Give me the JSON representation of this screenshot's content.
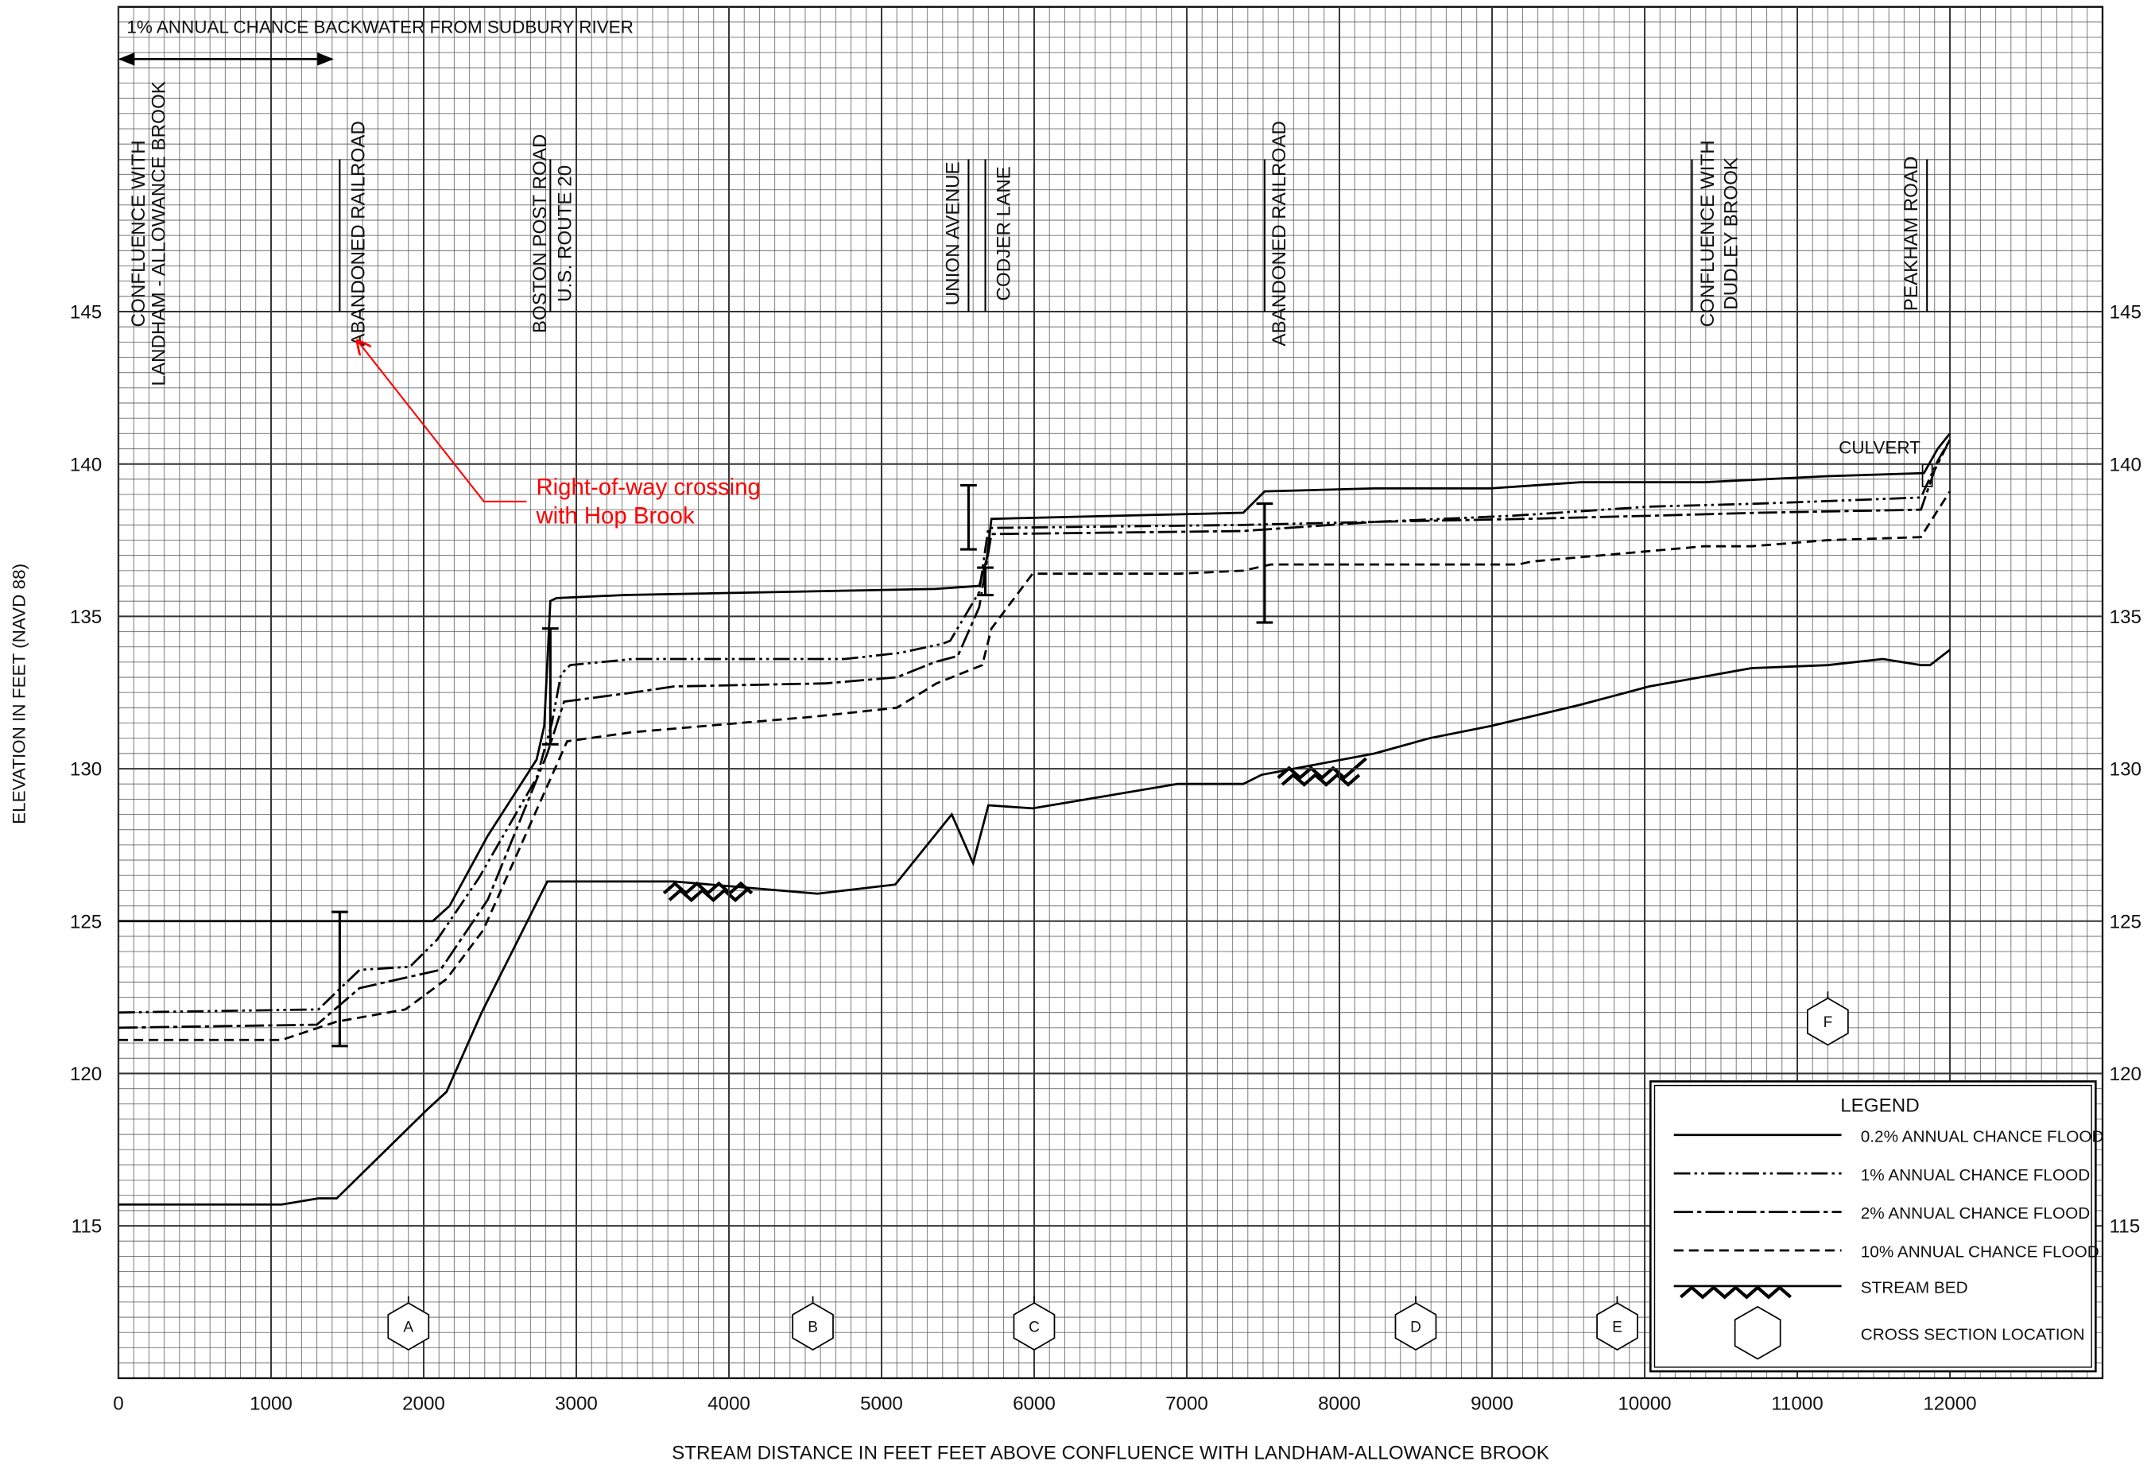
{
  "chart_data": {
    "type": "line",
    "xlabel": "STREAM DISTANCE IN FEET FEET ABOVE CONFLUENCE WITH LANDHAM-ALLOWANCE BROOK",
    "ylabel": "ELEVATION IN FEET (NAVD 88)",
    "xlim": [
      0,
      13000
    ],
    "ylim": [
      110,
      155
    ],
    "xticks": [
      0,
      1000,
      2000,
      3000,
      4000,
      5000,
      6000,
      7000,
      8000,
      9000,
      10000,
      11000,
      12000
    ],
    "yticks": [
      115,
      120,
      125,
      130,
      135,
      140,
      145
    ],
    "grid": true,
    "series": [
      {
        "name": "0.2% ANNUAL CHANCE FLOOD",
        "color": "#000000",
        "style": "solid",
        "x": [
          0,
          2060,
          2170,
          2420,
          2740,
          2790,
          2830,
          2870,
          3320,
          5350,
          5640,
          5690,
          5720,
          7370,
          7510,
          8230,
          8990,
          9580,
          10390,
          11200,
          11830,
          11920,
          12000
        ],
        "values": [
          125.0,
          125.0,
          125.5,
          127.8,
          130.3,
          131.4,
          135.5,
          135.6,
          135.7,
          135.9,
          136.0,
          136.9,
          138.2,
          138.4,
          139.1,
          139.2,
          139.2,
          139.4,
          139.4,
          139.6,
          139.7,
          140.5,
          141.0
        ]
      },
      {
        "name": "1% ANNUAL CHANCE FLOOD",
        "color": "#000000",
        "style": "dash-dot-dot",
        "x": [
          0,
          1310,
          1580,
          1910,
          2090,
          2360,
          2740,
          2840,
          2900,
          2960,
          3370,
          4760,
          5120,
          5400,
          5450,
          5640,
          5700,
          7370,
          8230,
          9130,
          10030,
          10750,
          11290,
          11810,
          11920,
          12000
        ],
        "values": [
          122.0,
          122.1,
          123.4,
          123.5,
          124.4,
          126.4,
          129.7,
          131.5,
          133.1,
          133.4,
          133.6,
          133.6,
          133.8,
          134.1,
          134.2,
          135.8,
          137.9,
          138.0,
          138.1,
          138.3,
          138.6,
          138.7,
          138.8,
          138.9,
          140.1,
          140.8
        ]
      },
      {
        "name": "2% ANNUAL CHANCE FLOOD",
        "color": "#000000",
        "style": "dash-dot",
        "x": [
          0,
          1300,
          1580,
          2110,
          2420,
          2810,
          2920,
          3370,
          3640,
          4630,
          5100,
          5350,
          5500,
          5640,
          5720,
          7370,
          8230,
          9220,
          10030,
          10750,
          11810,
          11900,
          12000
        ],
        "values": [
          121.5,
          121.6,
          122.8,
          123.4,
          125.7,
          130.5,
          132.2,
          132.5,
          132.7,
          132.8,
          133.0,
          133.5,
          133.7,
          135.3,
          137.7,
          137.8,
          138.1,
          138.2,
          138.3,
          138.4,
          138.5,
          139.8,
          140.8
        ]
      },
      {
        "name": "10% ANNUAL CHANCE FLOOD",
        "color": "#000000",
        "style": "dashed",
        "x": [
          0,
          1070,
          1430,
          1880,
          2150,
          2390,
          2940,
          3370,
          4540,
          5100,
          5360,
          5660,
          5720,
          5990,
          6950,
          7370,
          7550,
          9170,
          9260,
          10390,
          10700,
          11200,
          11810,
          11910,
          12000
        ],
        "values": [
          121.1,
          121.1,
          121.7,
          122.1,
          123.1,
          124.7,
          130.9,
          131.2,
          131.7,
          132.0,
          132.8,
          133.4,
          134.6,
          136.4,
          136.4,
          136.5,
          136.7,
          136.7,
          136.8,
          137.3,
          137.3,
          137.5,
          137.6,
          138.4,
          139.1
        ]
      },
      {
        "name": "STREAM BED",
        "color": "#000000",
        "style": "solid",
        "x": [
          0,
          1070,
          1310,
          1430,
          2020,
          2150,
          2380,
          2810,
          3640,
          4580,
          5090,
          5460,
          5600,
          5700,
          5990,
          6940,
          7370,
          7490,
          8230,
          8590,
          8990,
          9580,
          10030,
          10700,
          11200,
          11560,
          11810,
          11870,
          12000
        ],
        "values": [
          115.7,
          115.7,
          115.9,
          115.9,
          118.8,
          119.4,
          122.0,
          126.3,
          126.3,
          125.9,
          126.2,
          128.5,
          126.9,
          128.8,
          128.7,
          129.5,
          129.5,
          129.8,
          130.5,
          131.0,
          131.4,
          132.1,
          132.7,
          133.3,
          133.4,
          133.6,
          133.4,
          133.4,
          133.9
        ]
      }
    ],
    "structures": [
      {
        "x": 1450,
        "bottom": 120.9,
        "top": 125.3
      },
      {
        "x": 2830,
        "bottom": 130.8,
        "top": 134.6
      },
      {
        "x": 5570,
        "bottom": 137.2,
        "top": 139.3
      },
      {
        "x": 5680,
        "bottom": 135.7,
        "top": 136.6
      },
      {
        "x": 7510,
        "bottom": 134.8,
        "top": 138.7
      }
    ],
    "features": [
      {
        "x": 0,
        "lines": [
          "CONFLUENCE WITH",
          "LANDHAM - ALLOWANCE BROOK"
        ]
      },
      {
        "x": 1450,
        "lines": [
          "ABANDONED RAILROAD"
        ]
      },
      {
        "x": 2830,
        "lines": [
          "BOSTON POST ROAD",
          "U.S. ROUTE 20"
        ]
      },
      {
        "x": 5570,
        "lines": [
          "UNION AVENUE"
        ]
      },
      {
        "x": 5680,
        "lines": [
          "CODJER LANE"
        ]
      },
      {
        "x": 7510,
        "lines": [
          "ABANDONED RAILROAD"
        ]
      },
      {
        "x": 10310,
        "lines": [
          "CONFLUENCE WITH",
          "DUDLEY BROOK"
        ]
      },
      {
        "x": 11850,
        "lines": [
          "PEAKHAM ROAD"
        ]
      }
    ],
    "cross_sections": [
      {
        "label": "A",
        "x": 1900,
        "y": 111.7
      },
      {
        "label": "B",
        "x": 4550,
        "y": 111.7
      },
      {
        "label": "C",
        "x": 6000,
        "y": 111.7
      },
      {
        "label": "D",
        "x": 8500,
        "y": 111.7
      },
      {
        "label": "E",
        "x": 9820,
        "y": 111.7
      },
      {
        "label": "F",
        "x": 11200,
        "y": 121.7
      }
    ],
    "backwater": {
      "label": "1% ANNUAL CHANCE BACKWATER FROM SUDBURY RIVER",
      "x": [
        0,
        1400
      ]
    },
    "culvert": "CULVERT",
    "annotation": {
      "lines": [
        "Right-of-way crossing",
        "with Hop Brook"
      ],
      "color": "#ff0000"
    },
    "legend": {
      "title": "LEGEND",
      "cross_section": "CROSS SECTION LOCATION"
    }
  }
}
